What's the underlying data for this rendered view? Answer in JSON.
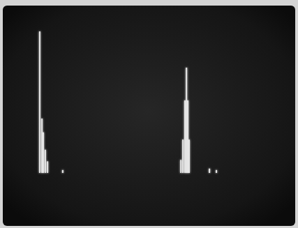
{
  "chart_data": {
    "type": "bar",
    "x": [
      0.6,
      1.6,
      2.2,
      3.1,
      4.1,
      10.9,
      63.8,
      64.7,
      65.6,
      66.3,
      66.9,
      67.5,
      76.6,
      79.7
    ],
    "values": [
      97.6,
      37.5,
      28,
      16,
      8,
      2,
      9,
      23,
      50,
      72.6,
      50,
      23,
      3,
      2
    ],
    "xlim": [
      0,
      100
    ],
    "ylim": [
      0,
      100
    ],
    "tick_labels": false,
    "grid": false,
    "color": "#e6e6e6"
  }
}
